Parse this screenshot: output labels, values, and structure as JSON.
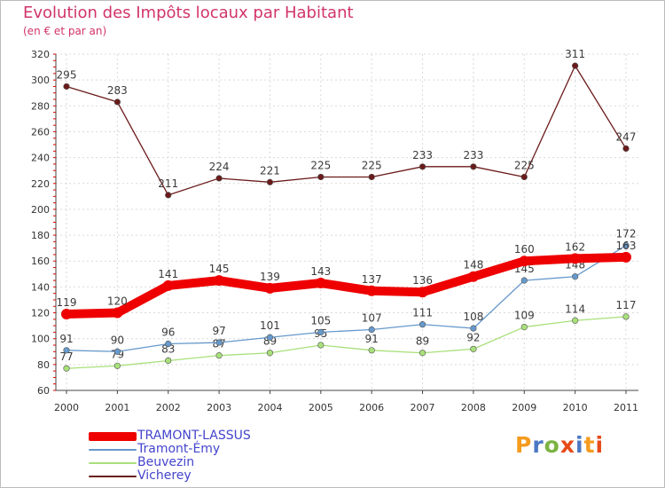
{
  "title": "Evolution des Impôts locaux par Habitant",
  "subtitle": "(en € et par an)",
  "logo": "Proxiti",
  "chart_data": {
    "type": "line",
    "title": "Evolution des Impôts locaux par Habitant",
    "subtitle": "(en € et par an)",
    "xlabel": "",
    "ylabel": "",
    "x": [
      "2000",
      "2001",
      "2002",
      "2003",
      "2004",
      "2005",
      "2006",
      "2007",
      "2008",
      "2009",
      "2010",
      "2011"
    ],
    "ylim": [
      60,
      320
    ],
    "yticks": [
      60,
      80,
      100,
      120,
      140,
      160,
      180,
      200,
      220,
      240,
      260,
      280,
      300,
      320
    ],
    "grid": true,
    "legend_position": "bottom-left",
    "series": [
      {
        "name": "Vicherey",
        "color": "#6b1a1a",
        "values": [
          295,
          283,
          211,
          224,
          221,
          225,
          225,
          233,
          233,
          225,
          311,
          247
        ]
      },
      {
        "name": "Beuvezin",
        "color": "#a8e07a",
        "values": [
          77,
          79,
          83,
          87,
          89,
          95,
          91,
          89,
          92,
          109,
          114,
          117
        ]
      },
      {
        "name": "Tramont-Émy",
        "color": "#6699cc",
        "values": [
          91,
          90,
          96,
          97,
          101,
          105,
          107,
          111,
          108,
          145,
          148,
          172
        ]
      },
      {
        "name": "TRAMONT-LASSUS",
        "color": "#ee0000",
        "values": [
          119,
          120,
          141,
          145,
          139,
          143,
          137,
          136,
          148,
          160,
          162,
          163
        ]
      }
    ],
    "legend": [
      {
        "name": "TRAMONT-LASSUS",
        "color": "#ee0000"
      },
      {
        "name": "Tramont-Émy",
        "color": "#6699cc"
      },
      {
        "name": "Beuvezin",
        "color": "#a8e07a"
      },
      {
        "name": "Vicherey",
        "color": "#6b1a1a"
      }
    ]
  }
}
